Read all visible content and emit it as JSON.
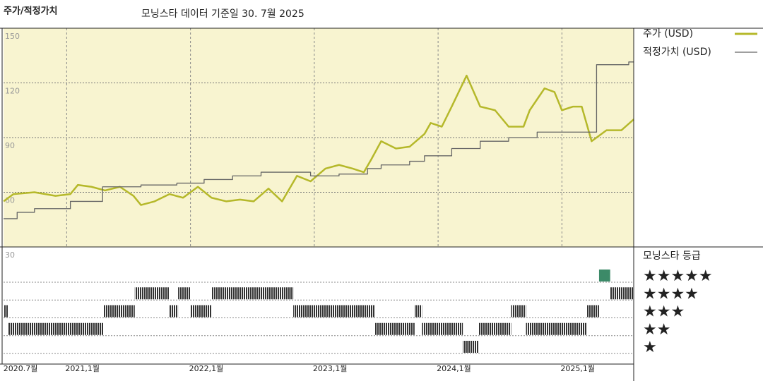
{
  "chart_data": {
    "type": "line",
    "title": "주가/적정가치",
    "subtitle": "모닝스타 데이터 기준일 30. 7월 2025",
    "xlim": [
      2020.49,
      2025.58
    ],
    "xticks": [
      {
        "value": 2020.5,
        "label": "2020.7월"
      },
      {
        "value": 2021.0,
        "label": "2021,1월"
      },
      {
        "value": 2022.0,
        "label": "2022,1월"
      },
      {
        "value": 2023.0,
        "label": "2023,1월"
      },
      {
        "value": 2024.0,
        "label": "2024,1월"
      },
      {
        "value": 2025.0,
        "label": "2025,1월"
      }
    ],
    "ylim": [
      30,
      150
    ],
    "yticks": [
      30,
      60,
      90,
      120,
      150
    ],
    "grid": true,
    "background": "#f8f4d0",
    "series": [
      {
        "name": "주가 (USD)",
        "color": "#b5b82a",
        "x": [
          2020.49,
          2020.57,
          2020.74,
          2020.91,
          2021.03,
          2021.09,
          2021.2,
          2021.31,
          2021.43,
          2021.54,
          2021.6,
          2021.71,
          2021.83,
          2021.94,
          2022.06,
          2022.17,
          2022.29,
          2022.4,
          2022.51,
          2022.63,
          2022.74,
          2022.86,
          2022.97,
          2023.09,
          2023.2,
          2023.31,
          2023.4,
          2023.46,
          2023.54,
          2023.66,
          2023.77,
          2023.89,
          2023.94,
          2024.03,
          2024.11,
          2024.23,
          2024.34,
          2024.46,
          2024.57,
          2024.69,
          2024.74,
          2024.86,
          2024.94,
          2025.0,
          2025.09,
          2025.16,
          2025.24,
          2025.36,
          2025.48,
          2025.58
        ],
        "values": [
          55,
          59,
          60,
          58,
          59,
          64,
          63,
          61,
          63,
          58,
          53,
          55,
          59,
          57,
          63,
          57,
          55,
          56,
          55,
          62,
          55,
          69,
          66,
          73,
          75,
          73,
          71,
          78,
          88,
          84,
          85,
          92,
          98,
          96,
          107,
          124,
          107,
          105,
          96,
          96,
          105,
          117,
          115,
          105,
          107,
          107,
          88,
          94,
          94,
          100
        ]
      },
      {
        "name": "적정가치 (USD)",
        "color": "#666666",
        "step": true,
        "x": [
          2020.49,
          2020.6,
          2020.74,
          2021.03,
          2021.29,
          2021.6,
          2021.89,
          2022.11,
          2022.34,
          2022.57,
          2022.97,
          2023.2,
          2023.43,
          2023.54,
          2023.77,
          2023.89,
          2024.11,
          2024.34,
          2024.57,
          2024.8,
          2025.28,
          2025.54
        ],
        "values": [
          45.5,
          49,
          51,
          55,
          63,
          64,
          65,
          67,
          69,
          71,
          69,
          70,
          73,
          75,
          77,
          80,
          84,
          88,
          90,
          93,
          130,
          131.5
        ]
      }
    ],
    "ratings": {
      "title": "모닝스타 등급",
      "labels": [
        "★",
        "★★",
        "★★★",
        "★★★★",
        "★★★★★"
      ],
      "colors": [
        "#333333",
        "#333333",
        "#333333",
        "#333333",
        "#3c8a68"
      ],
      "x_start": [
        2020.49,
        2020.53,
        2021.3,
        2021.55,
        2021.83,
        2021.9,
        2022.0,
        2022.17,
        2022.83,
        2023.49,
        2023.81,
        2023.87,
        2024.2,
        2024.33,
        2024.59,
        2024.71,
        2025.2,
        2025.3,
        2025.39
      ],
      "x_end": [
        2020.53,
        2021.3,
        2021.55,
        2021.83,
        2021.9,
        2022.0,
        2022.17,
        2022.83,
        2023.49,
        2023.81,
        2023.87,
        2024.2,
        2024.33,
        2024.59,
        2024.71,
        2025.2,
        2025.3,
        2025.39,
        2025.58
      ],
      "stars": [
        3,
        2,
        3,
        4,
        3,
        4,
        3,
        4,
        3,
        2,
        3,
        2,
        1,
        2,
        3,
        2,
        3,
        5,
        4
      ]
    }
  }
}
